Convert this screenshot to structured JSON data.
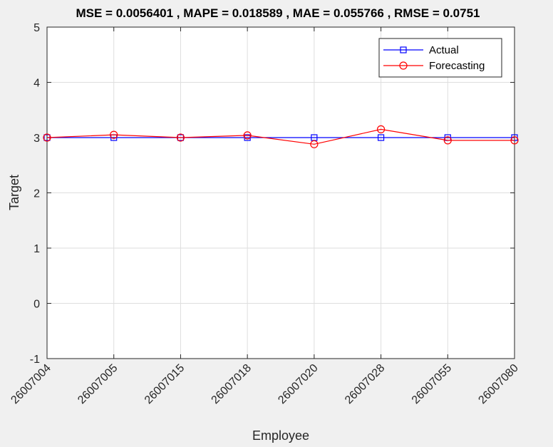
{
  "chart_data": {
    "type": "line",
    "title": "MSE = 0.0056401 , MAPE = 0.018589 , MAE = 0.055766 , RMSE = 0.0751",
    "xlabel": "Employee",
    "ylabel": "Target",
    "categories": [
      "26007004",
      "26007005",
      "26007015",
      "26007018",
      "26007020",
      "26007028",
      "26007055",
      "26007080"
    ],
    "ylim": [
      -1,
      5
    ],
    "yticks": [
      -1,
      0,
      1,
      2,
      3,
      4,
      5
    ],
    "grid": true,
    "legend_position": "top-right",
    "series": [
      {
        "name": "Actual",
        "color": "#0000ff",
        "marker": "square",
        "values": [
          3,
          3,
          3,
          3,
          3,
          3,
          3,
          3
        ]
      },
      {
        "name": "Forecasting",
        "color": "#ff0000",
        "marker": "circle",
        "values": [
          3.0,
          3.05,
          3.0,
          3.04,
          2.88,
          3.15,
          2.95,
          2.95
        ]
      }
    ]
  }
}
